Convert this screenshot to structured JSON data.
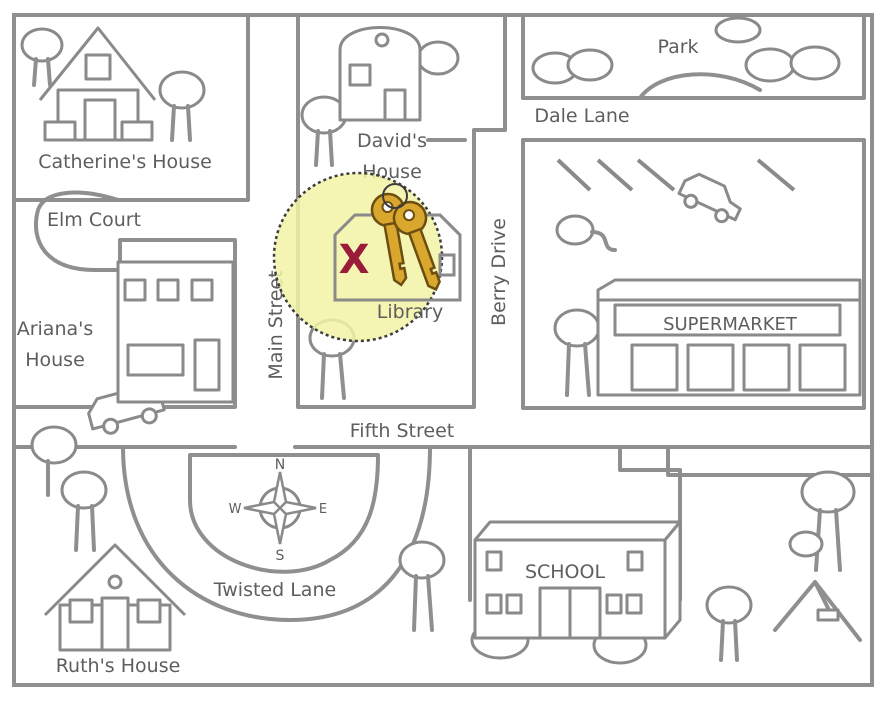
{
  "labels": {
    "catherines_house": "Catherine's House",
    "elm_court": "Elm Court",
    "arianas_house_line1": "Ariana's",
    "arianas_house_line2": "House",
    "main_street": "Main Street",
    "davids_house_line1": "David's",
    "davids_house_line2": "House",
    "library": "Library",
    "berry_drive": "Berry Drive",
    "park": "Park",
    "dale_lane": "Dale Lane",
    "supermarket": "SUPERMARKET",
    "fifth_street": "Fifth Street",
    "twisted_lane": "Twisted Lane",
    "school": "SCHOOL",
    "ruths_house": "Ruth's House"
  },
  "compass": {
    "north": "N",
    "south": "S",
    "east": "E",
    "west": "W"
  },
  "marker": {
    "text": "X",
    "color": "#9b1b3a"
  },
  "highlight_color": "#f2f2a6",
  "keys_color": "#d9a72e",
  "icons": {
    "keys": "keys-icon",
    "compass": "compass-rose-icon"
  }
}
